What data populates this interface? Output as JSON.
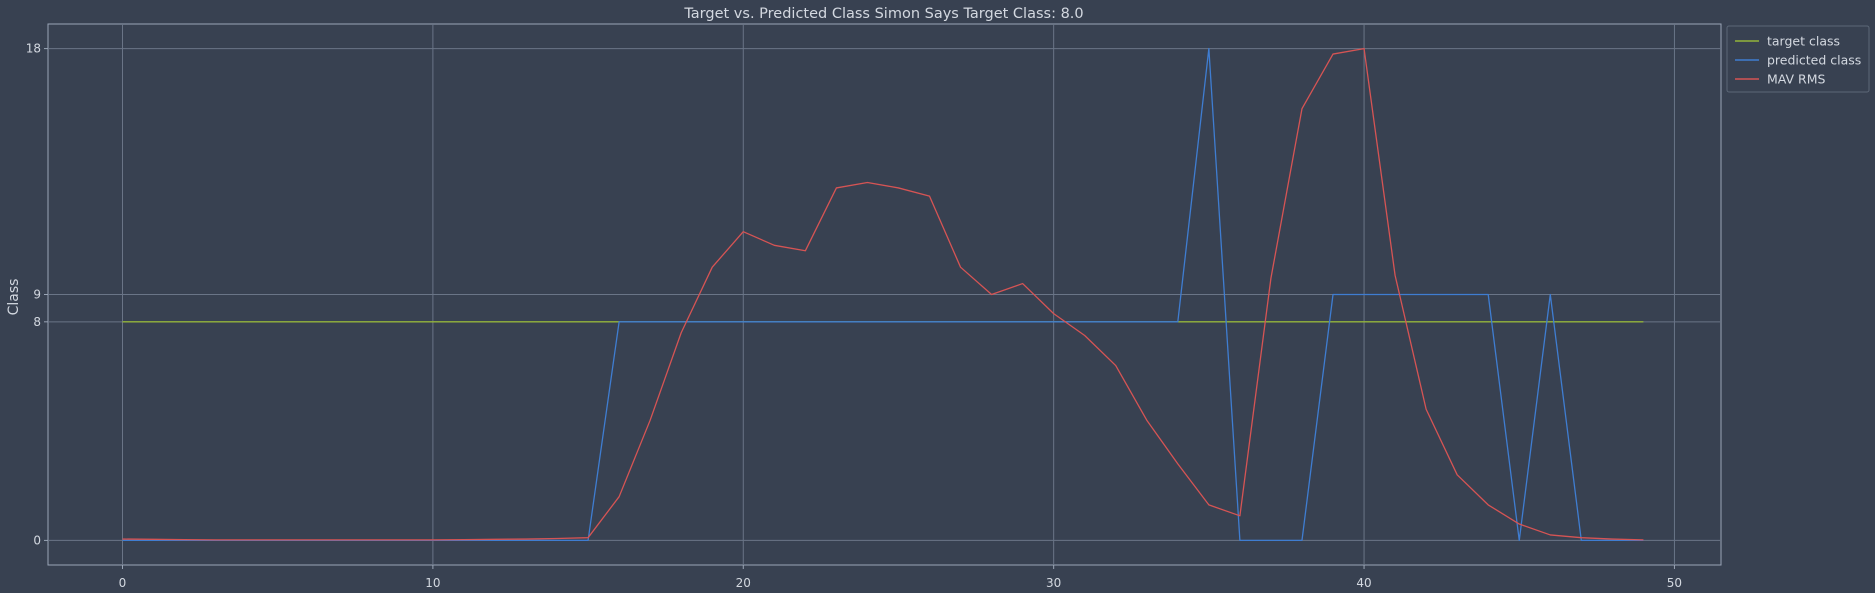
{
  "chart_data": {
    "type": "line",
    "title": "Target vs. Predicted Class Simon Says Target Class: 8.0",
    "xlabel": "",
    "ylabel": "Class",
    "xlim": [
      -2.4,
      51.5
    ],
    "ylim": [
      -0.9,
      18.9
    ],
    "grid": true,
    "legend_position": "top-right",
    "x_ticks": [
      0,
      10,
      20,
      30,
      40,
      50
    ],
    "x_tick_labels": [
      "0",
      "10",
      "20",
      "30",
      "40",
      "50"
    ],
    "y_ticks": [
      0,
      8,
      9,
      18
    ],
    "y_tick_labels": [
      "0",
      "8",
      "9",
      "18"
    ],
    "x": [
      0,
      1,
      2,
      3,
      4,
      5,
      6,
      7,
      8,
      9,
      10,
      11,
      12,
      13,
      14,
      15,
      16,
      17,
      18,
      19,
      20,
      21,
      22,
      23,
      24,
      25,
      26,
      27,
      28,
      29,
      30,
      31,
      32,
      33,
      34,
      35,
      36,
      37,
      38,
      39,
      40,
      41,
      42,
      43,
      44,
      45,
      46,
      47,
      48,
      49
    ],
    "series": [
      {
        "name": "target class",
        "color": "#93b43a",
        "values": [
          8,
          8,
          8,
          8,
          8,
          8,
          8,
          8,
          8,
          8,
          8,
          8,
          8,
          8,
          8,
          8,
          8,
          8,
          8,
          8,
          8,
          8,
          8,
          8,
          8,
          8,
          8,
          8,
          8,
          8,
          8,
          8,
          8,
          8,
          8,
          8,
          8,
          8,
          8,
          8,
          8,
          8,
          8,
          8,
          8,
          8,
          8,
          8,
          8,
          8
        ]
      },
      {
        "name": "predicted class",
        "color": "#3f7dd1",
        "values": [
          0,
          0,
          0,
          0,
          0,
          0,
          0,
          0,
          0,
          0,
          0,
          0,
          0,
          0,
          0,
          0,
          8,
          8,
          8,
          8,
          8,
          8,
          8,
          8,
          8,
          8,
          8,
          8,
          8,
          8,
          8,
          8,
          8,
          8,
          8,
          18,
          0,
          0,
          0,
          9,
          9,
          9,
          9,
          9,
          9,
          0,
          9,
          0,
          0,
          0
        ]
      },
      {
        "name": "MAV RMS",
        "color": "#d65454",
        "values": [
          0.05,
          0.04,
          0.03,
          0.02,
          0.02,
          0.02,
          0.02,
          0.02,
          0.02,
          0.02,
          0.02,
          0.03,
          0.04,
          0.05,
          0.07,
          0.1,
          1.6,
          4.4,
          7.6,
          10.0,
          11.3,
          10.8,
          10.6,
          12.9,
          13.1,
          12.9,
          12.6,
          10.0,
          9.0,
          9.4,
          8.3,
          7.5,
          6.4,
          4.4,
          2.8,
          1.3,
          0.9,
          9.6,
          15.8,
          17.8,
          18.0,
          9.7,
          4.8,
          2.4,
          1.3,
          0.6,
          0.2,
          0.1,
          0.05,
          0.02
        ]
      }
    ]
  }
}
